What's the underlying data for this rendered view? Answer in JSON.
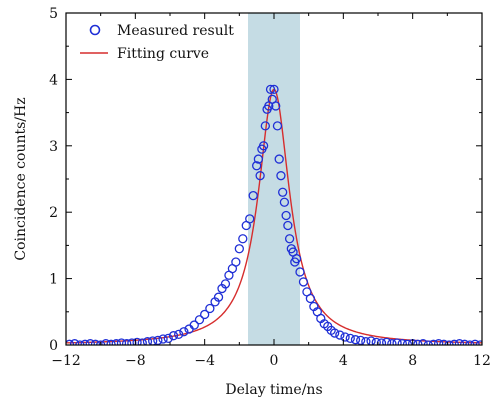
{
  "chart_data": {
    "type": "scatter",
    "xlabel": "Delay time/ns",
    "ylabel": "Coincidence counts/Hz",
    "xlim": [
      -12,
      12
    ],
    "ylim": [
      0,
      5
    ],
    "xticks": [
      -12,
      -8,
      -4,
      0,
      4,
      8,
      12
    ],
    "xtick_labels": [
      "−12",
      "−8",
      "−4",
      "0",
      "4",
      "8",
      "12"
    ],
    "yticks": [
      0,
      1,
      2,
      3,
      4,
      5
    ],
    "ytick_labels": [
      "0",
      "1",
      "2",
      "3",
      "4",
      "5"
    ],
    "grid": false,
    "legend_position": "top-left",
    "shaded_region": {
      "x0": -1.5,
      "x1": 1.5,
      "color": "#c5dce4"
    },
    "series": [
      {
        "name": "Measured result",
        "kind": "markers",
        "color": "#1f2fd6",
        "x": [
          -11.8,
          -11.5,
          -11.2,
          -10.9,
          -10.6,
          -10.3,
          -10.0,
          -9.7,
          -9.4,
          -9.1,
          -8.8,
          -8.5,
          -8.2,
          -7.9,
          -7.6,
          -7.3,
          -7.0,
          -6.7,
          -6.4,
          -6.1,
          -5.8,
          -5.5,
          -5.2,
          -4.9,
          -4.6,
          -4.3,
          -4.0,
          -3.7,
          -3.4,
          -3.2,
          -3.0,
          -2.8,
          -2.6,
          -2.4,
          -2.2,
          -2.0,
          -1.8,
          -1.6,
          -1.4,
          -1.2,
          -1.0,
          -0.9,
          -0.8,
          -0.7,
          -0.6,
          -0.5,
          -0.4,
          -0.3,
          -0.2,
          -0.1,
          0.0,
          0.1,
          0.2,
          0.3,
          0.4,
          0.5,
          0.6,
          0.7,
          0.8,
          0.9,
          1.0,
          1.1,
          1.2,
          1.3,
          1.5,
          1.7,
          1.9,
          2.1,
          2.3,
          2.5,
          2.7,
          2.9,
          3.1,
          3.3,
          3.5,
          3.8,
          4.1,
          4.4,
          4.7,
          5.0,
          5.3,
          5.6,
          5.9,
          6.2,
          6.5,
          6.8,
          7.1,
          7.4,
          7.7,
          8.0,
          8.3,
          8.6,
          8.9,
          9.2,
          9.5,
          9.8,
          10.1,
          10.4,
          10.7,
          11.0,
          11.3,
          11.6,
          11.9
        ],
        "y": [
          0.01,
          0.02,
          0.0,
          0.01,
          0.02,
          0.01,
          0.0,
          0.02,
          0.01,
          0.02,
          0.03,
          0.02,
          0.03,
          0.04,
          0.03,
          0.05,
          0.06,
          0.07,
          0.09,
          0.1,
          0.14,
          0.16,
          0.2,
          0.24,
          0.3,
          0.38,
          0.46,
          0.55,
          0.65,
          0.72,
          0.85,
          0.92,
          1.05,
          1.15,
          1.25,
          1.45,
          1.6,
          1.8,
          1.9,
          2.25,
          2.7,
          2.8,
          2.55,
          2.95,
          3.0,
          3.3,
          3.55,
          3.6,
          3.85,
          3.7,
          3.85,
          3.6,
          3.3,
          2.8,
          2.55,
          2.3,
          2.15,
          1.95,
          1.8,
          1.6,
          1.45,
          1.4,
          1.25,
          1.3,
          1.1,
          0.95,
          0.8,
          0.7,
          0.58,
          0.5,
          0.4,
          0.32,
          0.28,
          0.22,
          0.18,
          0.15,
          0.12,
          0.1,
          0.08,
          0.07,
          0.05,
          0.06,
          0.04,
          0.03,
          0.04,
          0.02,
          0.03,
          0.02,
          0.01,
          0.02,
          0.01,
          0.02,
          0.0,
          0.01,
          0.02,
          0.01,
          0.0,
          0.01,
          0.02,
          0.01,
          0.0,
          0.01,
          0.0
        ]
      },
      {
        "name": "Fitting curve",
        "kind": "line",
        "color": "#d62d2d",
        "function": "lorentzian",
        "center": 0,
        "fwhm": 2.2,
        "amplitude": 3.85
      }
    ]
  }
}
